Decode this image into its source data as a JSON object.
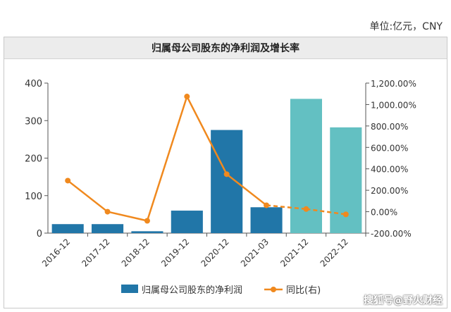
{
  "header": {
    "unit": "单位:亿元，CNY"
  },
  "chart_data": {
    "type": "bar",
    "title": "归属母公司股东的净利润及增长率",
    "categories": [
      "2016-12",
      "2017-12",
      "2018-12",
      "2019-12",
      "2020-12",
      "2021-03",
      "2021-12",
      "2022-12"
    ],
    "series": [
      {
        "name": "归属母公司股东的净利润",
        "type": "bar",
        "axis": "left",
        "values": [
          24,
          24,
          5,
          60,
          275,
          69,
          358,
          282
        ],
        "colors": [
          "#2176a8",
          "#2176a8",
          "#2176a8",
          "#2176a8",
          "#2176a8",
          "#2176a8",
          "#63c0c2",
          "#63c0c2"
        ]
      },
      {
        "name": "同比(右)",
        "type": "line",
        "axis": "right",
        "values": [
          290,
          0,
          -85,
          1075,
          350,
          60,
          25,
          -25
        ],
        "color": "#f0891e",
        "dashed_from_index": 5
      }
    ],
    "y_left": {
      "ylim": [
        0,
        400
      ],
      "ticks": [
        "0",
        "100",
        "200",
        "300",
        "400"
      ]
    },
    "y_right": {
      "ylim": [
        -200,
        1200
      ],
      "ticks": [
        "-200.00%",
        "0.00%",
        "200.00%",
        "400.00%",
        "600.00%",
        "800.00%",
        "1,000.00%",
        "1,200.00%"
      ]
    },
    "grid": false,
    "legend": "bottom"
  },
  "watermark": "搜狐号@野火财经"
}
